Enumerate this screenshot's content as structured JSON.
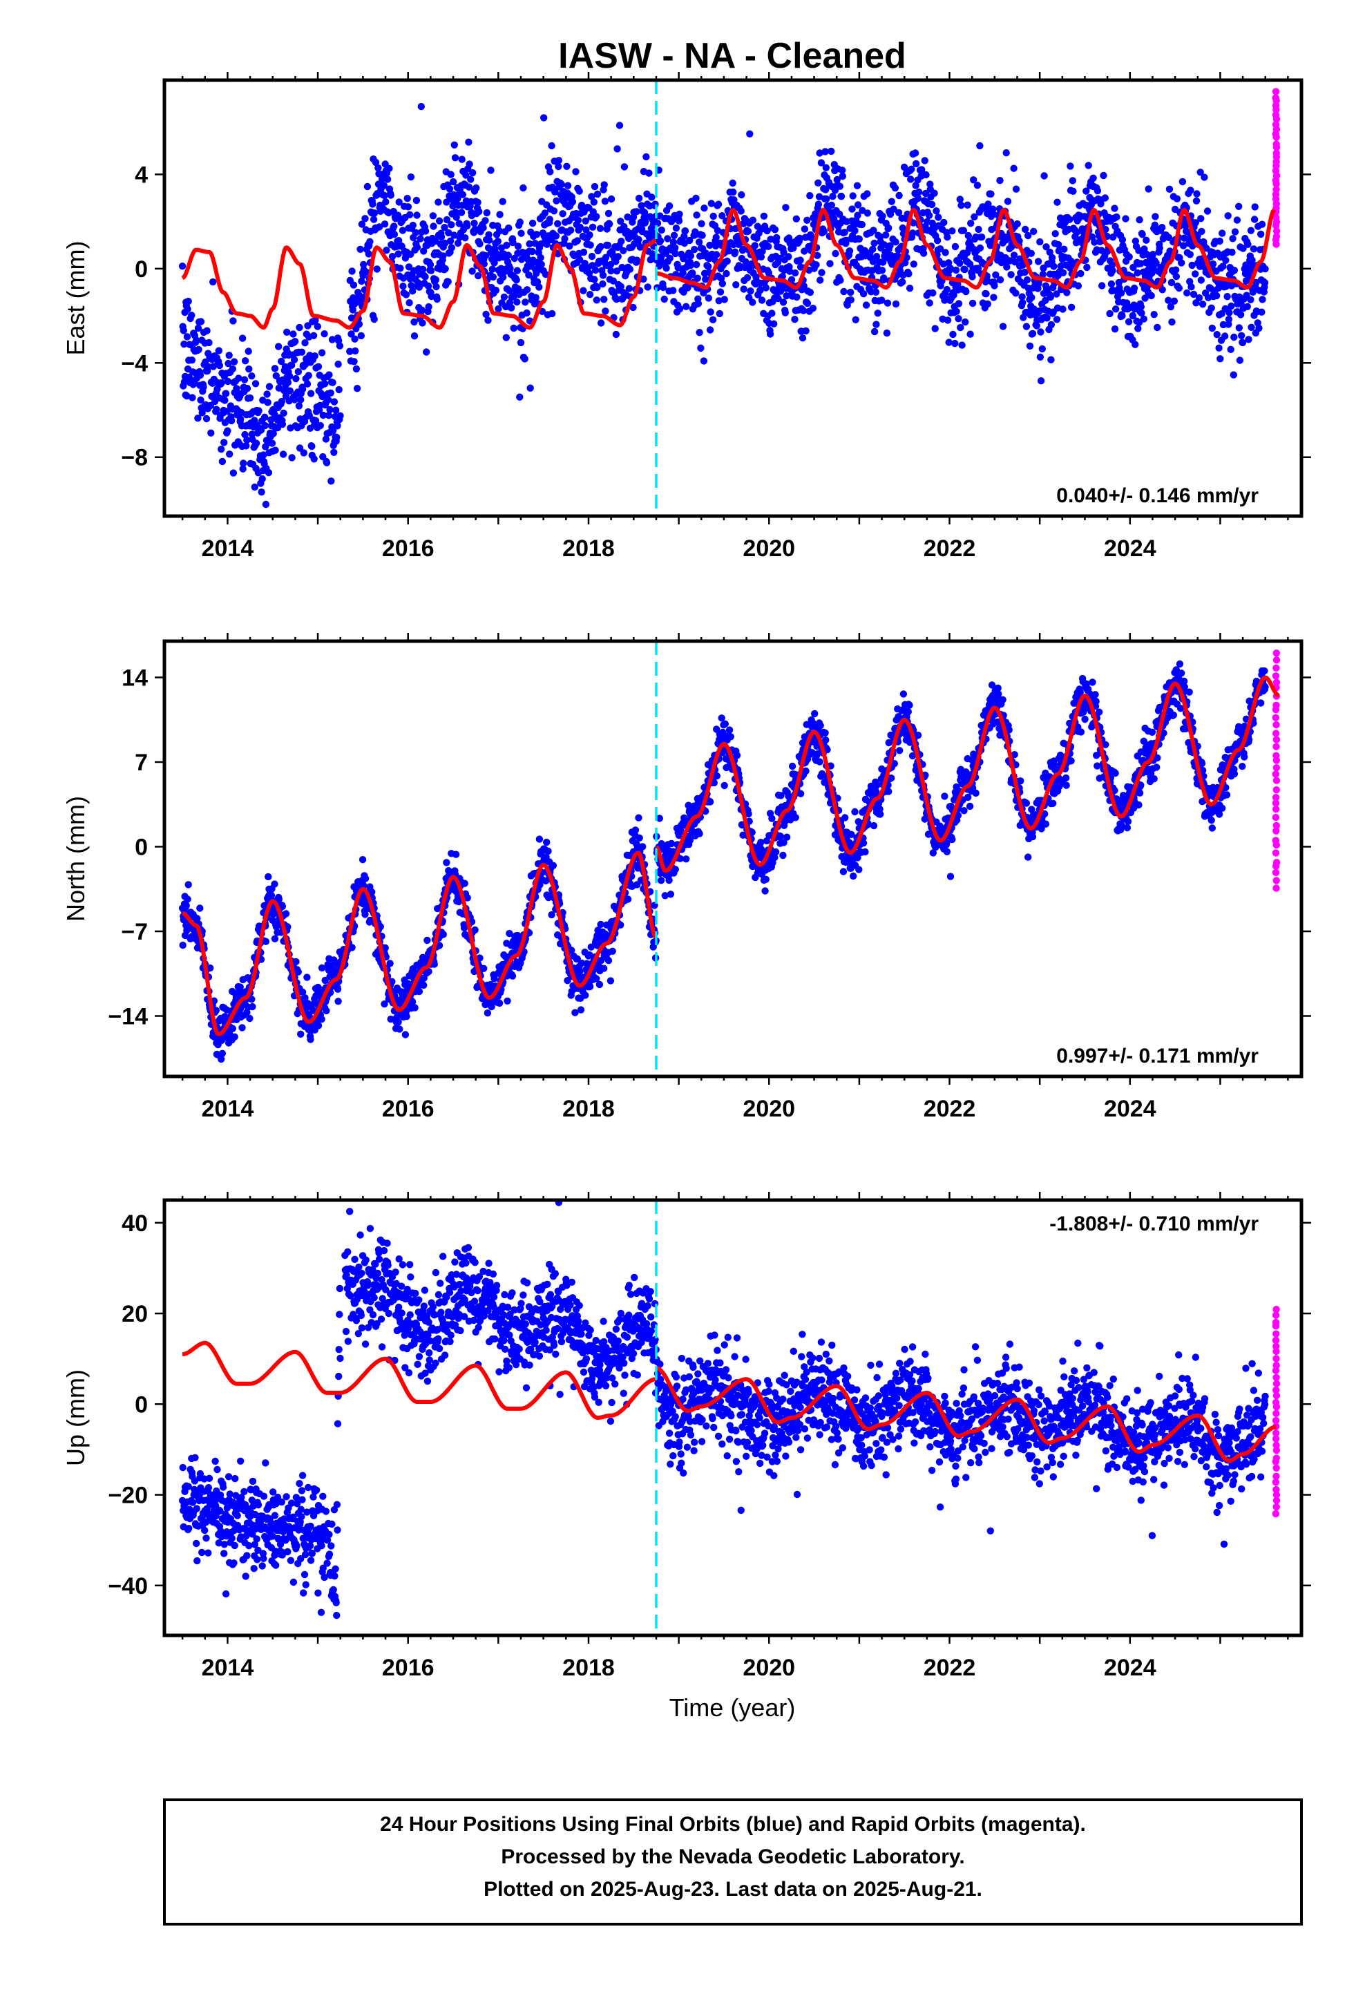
{
  "title": "IASW  - NA - Cleaned",
  "xlabel": "Time (year)",
  "footer_lines": [
    "24 Hour Positions Using Final Orbits (blue) and Rapid Orbits (magenta).",
    "Processed by the Nevada Geodetic Laboratory.",
    "Plotted on 2025-Aug-23. Last data on 2025-Aug-21."
  ],
  "colors": {
    "final_orbits": "#0000ff",
    "rapid_orbits": "#ff00ff",
    "model_fit": "#ff0000",
    "equipment_change": "#00e5ee",
    "frame": "#000000"
  },
  "chart_data": [
    {
      "type": "scatter",
      "ylabel": "East (mm)",
      "rate_label": "0.040+/- 0.146 mm/yr",
      "rate_position": "bottom-right",
      "xlim": [
        2013.3,
        2025.9
      ],
      "ylim": [
        -10.5,
        8
      ],
      "x_ticks": [
        2014,
        2016,
        2018,
        2020,
        2022,
        2024
      ],
      "y_ticks": [
        4,
        0,
        -4,
        -8
      ],
      "y_tick_labels": [
        "4",
        "0",
        "−4",
        "−8"
      ],
      "grid": false,
      "equipment_change_year": 2018.75,
      "final_orbits": {
        "start": 2013.5,
        "end": 2025.5,
        "gaps": [
          [
            2015.25,
            2015.35
          ]
        ],
        "noise": 1.3,
        "knots": [
          [
            2013.5,
            -3.5
          ],
          [
            2013.7,
            -4.0
          ],
          [
            2014.0,
            -5.5
          ],
          [
            2014.2,
            -6.0
          ],
          [
            2014.4,
            -7.5
          ],
          [
            2014.5,
            -6.5
          ],
          [
            2014.6,
            -4.5
          ],
          [
            2014.9,
            -5.0
          ],
          [
            2015.1,
            -6.0
          ],
          [
            2015.2,
            -6.5
          ],
          [
            2015.4,
            -1.5
          ],
          [
            2015.7,
            3.0
          ],
          [
            2015.9,
            1.0
          ],
          [
            2016.2,
            -0.5
          ],
          [
            2016.6,
            3.0
          ],
          [
            2016.9,
            0.5
          ],
          [
            2017.3,
            -0.5
          ],
          [
            2017.7,
            2.5
          ],
          [
            2018.0,
            1.0
          ],
          [
            2018.3,
            0.0
          ],
          [
            2018.7,
            2.0
          ],
          [
            2018.8,
            0.8
          ],
          [
            2019.2,
            0.0
          ],
          [
            2019.6,
            1.5
          ],
          [
            2020.0,
            0.0
          ],
          [
            2020.4,
            0.0
          ],
          [
            2020.65,
            2.5
          ],
          [
            2021.0,
            0.5
          ],
          [
            2021.4,
            0.5
          ],
          [
            2021.65,
            2.5
          ],
          [
            2022.0,
            -0.5
          ],
          [
            2022.6,
            1.5
          ],
          [
            2023.0,
            -1.0
          ],
          [
            2023.6,
            2.0
          ],
          [
            2024.0,
            -1.0
          ],
          [
            2024.6,
            1.5
          ],
          [
            2025.0,
            -0.8
          ],
          [
            2025.5,
            -0.5
          ]
        ]
      },
      "rapid_orbits": {
        "x": 2025.62,
        "y_range": [
          1.0,
          7.5
        ]
      },
      "model_fit": {
        "segments": [
          [
            [
              2013.5,
              -0.4
            ],
            [
              2013.65,
              0.8
            ],
            [
              2013.8,
              0.7
            ],
            [
              2013.95,
              -1.0
            ],
            [
              2014.1,
              -1.9
            ],
            [
              2014.25,
              -2.0
            ],
            [
              2014.4,
              -2.5
            ],
            [
              2014.5,
              -1.7
            ],
            [
              2014.65,
              0.9
            ],
            [
              2014.8,
              0.2
            ],
            [
              2014.95,
              -2.0
            ],
            [
              2015.2,
              -2.2
            ],
            [
              2015.35,
              -2.5
            ],
            [
              2015.5,
              -1.8
            ],
            [
              2015.65,
              0.9
            ],
            [
              2015.8,
              0.3
            ],
            [
              2015.95,
              -1.9
            ],
            [
              2016.15,
              -2.0
            ],
            [
              2016.35,
              -2.5
            ],
            [
              2016.5,
              -1.4
            ],
            [
              2016.65,
              1.0
            ],
            [
              2016.8,
              0.1
            ],
            [
              2016.95,
              -1.9
            ],
            [
              2017.15,
              -2.0
            ],
            [
              2017.35,
              -2.5
            ],
            [
              2017.5,
              -1.4
            ],
            [
              2017.65,
              1.0
            ],
            [
              2017.8,
              0.0
            ],
            [
              2017.95,
              -1.9
            ],
            [
              2018.15,
              -2.0
            ],
            [
              2018.35,
              -2.4
            ],
            [
              2018.5,
              -1.2
            ],
            [
              2018.65,
              1.0
            ],
            [
              2018.75,
              1.2
            ]
          ],
          [
            [
              2018.75,
              -0.2
            ],
            [
              2018.95,
              -0.4
            ],
            [
              2019.15,
              -0.6
            ],
            [
              2019.3,
              -0.8
            ],
            [
              2019.45,
              0.3
            ],
            [
              2019.6,
              2.5
            ],
            [
              2019.75,
              1.0
            ],
            [
              2019.95,
              -0.4
            ],
            [
              2020.15,
              -0.5
            ],
            [
              2020.3,
              -0.8
            ],
            [
              2020.45,
              0.3
            ],
            [
              2020.6,
              2.5
            ],
            [
              2020.75,
              1.0
            ],
            [
              2020.95,
              -0.4
            ],
            [
              2021.15,
              -0.5
            ],
            [
              2021.3,
              -0.8
            ],
            [
              2021.45,
              0.3
            ],
            [
              2021.6,
              2.5
            ],
            [
              2021.75,
              1.0
            ],
            [
              2021.95,
              -0.4
            ],
            [
              2022.15,
              -0.5
            ],
            [
              2022.3,
              -0.8
            ],
            [
              2022.45,
              0.3
            ],
            [
              2022.6,
              2.5
            ],
            [
              2022.75,
              1.0
            ],
            [
              2022.95,
              -0.4
            ],
            [
              2023.15,
              -0.5
            ],
            [
              2023.3,
              -0.8
            ],
            [
              2023.45,
              0.3
            ],
            [
              2023.6,
              2.5
            ],
            [
              2023.75,
              1.0
            ],
            [
              2023.95,
              -0.4
            ],
            [
              2024.15,
              -0.5
            ],
            [
              2024.3,
              -0.8
            ],
            [
              2024.45,
              0.3
            ],
            [
              2024.6,
              2.5
            ],
            [
              2024.75,
              1.0
            ],
            [
              2024.95,
              -0.4
            ],
            [
              2025.15,
              -0.5
            ],
            [
              2025.3,
              -0.8
            ],
            [
              2025.45,
              0.3
            ],
            [
              2025.6,
              2.5
            ]
          ]
        ]
      }
    },
    {
      "type": "scatter",
      "ylabel": "North (mm)",
      "rate_label": "0.997+/- 0.171 mm/yr",
      "rate_position": "bottom-right",
      "xlim": [
        2013.3,
        2025.9
      ],
      "ylim": [
        -19,
        17
      ],
      "x_ticks": [
        2014,
        2016,
        2018,
        2020,
        2022,
        2024
      ],
      "y_ticks": [
        14,
        7,
        0,
        -7,
        -14
      ],
      "y_tick_labels": [
        "14",
        "7",
        "0",
        "−7",
        "−14"
      ],
      "grid": false,
      "equipment_change_year": 2018.75,
      "final_orbits": {
        "start": 2013.5,
        "end": 2025.5,
        "gaps": [],
        "noise": 1.0,
        "knots": "same as model_fit"
      },
      "rapid_orbits": {
        "x": 2025.62,
        "y_range": [
          -3.5,
          16.0
        ]
      },
      "model_fit": {
        "segments": [
          [
            [
              2013.5,
              -5.5
            ],
            [
              2013.65,
              -6.5
            ],
            [
              2013.9,
              -15.5
            ],
            [
              2014.2,
              -12.5
            ],
            [
              2014.5,
              -4.5
            ],
            [
              2014.9,
              -14.5
            ],
            [
              2015.2,
              -11.0
            ],
            [
              2015.5,
              -3.5
            ],
            [
              2015.9,
              -13.5
            ],
            [
              2016.2,
              -10.0
            ],
            [
              2016.5,
              -2.5
            ],
            [
              2016.9,
              -12.5
            ],
            [
              2017.2,
              -9.0
            ],
            [
              2017.5,
              -1.5
            ],
            [
              2017.9,
              -11.5
            ],
            [
              2018.2,
              -8.0
            ],
            [
              2018.55,
              -0.5
            ],
            [
              2018.75,
              -7.5
            ]
          ],
          [
            [
              2018.75,
              0.0
            ],
            [
              2018.85,
              -2.0
            ],
            [
              2019.2,
              2.5
            ],
            [
              2019.5,
              8.5
            ],
            [
              2019.9,
              -1.5
            ],
            [
              2020.2,
              3.0
            ],
            [
              2020.5,
              9.5
            ],
            [
              2020.9,
              -0.5
            ],
            [
              2021.2,
              4.0
            ],
            [
              2021.5,
              10.5
            ],
            [
              2021.9,
              0.5
            ],
            [
              2022.2,
              5.0
            ],
            [
              2022.5,
              11.5
            ],
            [
              2022.9,
              1.5
            ],
            [
              2023.2,
              6.0
            ],
            [
              2023.5,
              12.5
            ],
            [
              2023.9,
              2.5
            ],
            [
              2024.2,
              7.0
            ],
            [
              2024.5,
              13.5
            ],
            [
              2024.9,
              3.5
            ],
            [
              2025.2,
              8.0
            ],
            [
              2025.5,
              14.0
            ],
            [
              2025.65,
              12.5
            ]
          ]
        ]
      }
    },
    {
      "type": "scatter",
      "ylabel": "Up (mm)",
      "rate_label": "-1.808+/- 0.710 mm/yr",
      "rate_position": "top-right",
      "xlim": [
        2013.3,
        2025.9
      ],
      "ylim": [
        -51,
        45
      ],
      "x_ticks": [
        2014,
        2016,
        2018,
        2020,
        2022,
        2024
      ],
      "y_ticks": [
        40,
        20,
        0,
        -20,
        -40
      ],
      "y_tick_labels": [
        "40",
        "20",
        "0",
        "−20",
        "−40"
      ],
      "grid": false,
      "equipment_change_year": 2018.75,
      "final_orbits": {
        "start": 2013.5,
        "end": 2025.5,
        "gaps": [
          [
            2015.25,
            2015.3
          ]
        ],
        "noise": 5.0,
        "knots": [
          [
            2013.5,
            -21.0
          ],
          [
            2014.0,
            -25.0
          ],
          [
            2014.5,
            -27.0
          ],
          [
            2015.0,
            -28.0
          ],
          [
            2015.2,
            -38.0
          ],
          [
            2015.25,
            24.0
          ],
          [
            2015.7,
            26.0
          ],
          [
            2016.2,
            16.0
          ],
          [
            2016.7,
            25.0
          ],
          [
            2017.2,
            15.0
          ],
          [
            2017.7,
            21.0
          ],
          [
            2018.1,
            8.0
          ],
          [
            2018.7,
            19.0
          ],
          [
            2018.8,
            0.0
          ],
          [
            2019.0,
            -2.0
          ],
          [
            2019.5,
            2.0
          ],
          [
            2020.0,
            -5.0
          ],
          [
            2020.6,
            3.0
          ],
          [
            2021.0,
            -5.0
          ],
          [
            2021.6,
            1.0
          ],
          [
            2022.0,
            -6.0
          ],
          [
            2022.6,
            0.0
          ],
          [
            2023.0,
            -7.0
          ],
          [
            2023.6,
            1.0
          ],
          [
            2024.0,
            -9.0
          ],
          [
            2024.6,
            -3.0
          ],
          [
            2025.0,
            -11.0
          ],
          [
            2025.5,
            -6.0
          ]
        ]
      },
      "rapid_orbits": {
        "x": 2025.62,
        "y_range": [
          -24.0,
          21.0
        ]
      },
      "model_fit": {
        "segments": [
          [
            [
              2013.5,
              11.0
            ],
            [
              2013.75,
              13.5
            ],
            [
              2014.1,
              4.5
            ],
            [
              2014.25,
              4.5
            ],
            [
              2014.75,
              11.5
            ],
            [
              2015.1,
              2.5
            ],
            [
              2015.25,
              2.5
            ],
            [
              2015.75,
              10.0
            ],
            [
              2016.1,
              0.5
            ],
            [
              2016.25,
              0.5
            ],
            [
              2016.75,
              8.5
            ],
            [
              2017.1,
              -1.0
            ],
            [
              2017.25,
              -1.0
            ],
            [
              2017.75,
              7.0
            ],
            [
              2018.1,
              -3.0
            ],
            [
              2018.25,
              -2.5
            ],
            [
              2018.75,
              5.5
            ]
          ],
          [
            [
              2018.75,
              8.0
            ],
            [
              2019.1,
              -1.5
            ],
            [
              2019.25,
              -0.5
            ],
            [
              2019.75,
              5.5
            ],
            [
              2020.1,
              -4.0
            ],
            [
              2020.25,
              -3.0
            ],
            [
              2020.75,
              4.0
            ],
            [
              2021.1,
              -5.5
            ],
            [
              2021.25,
              -4.5
            ],
            [
              2021.75,
              2.5
            ],
            [
              2022.1,
              -7.0
            ],
            [
              2022.25,
              -6.0
            ],
            [
              2022.75,
              1.0
            ],
            [
              2023.1,
              -8.5
            ],
            [
              2023.25,
              -7.5
            ],
            [
              2023.75,
              -0.5
            ],
            [
              2024.1,
              -10.5
            ],
            [
              2024.25,
              -9.0
            ],
            [
              2024.75,
              -2.5
            ],
            [
              2025.1,
              -12.5
            ],
            [
              2025.25,
              -11.0
            ],
            [
              2025.62,
              -5.0
            ]
          ]
        ]
      }
    }
  ]
}
